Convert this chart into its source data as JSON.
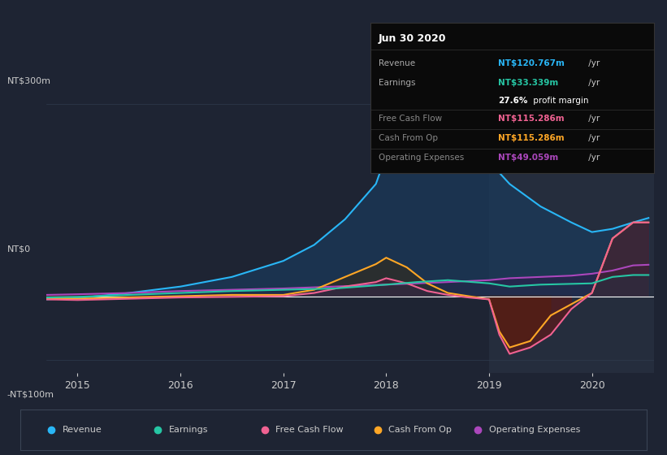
{
  "bg_color": "#1e2433",
  "plot_bg_color": "#1e2433",
  "highlight_bg": "#252d3d",
  "grid_color": "#2e3a4e",
  "zero_line_color": "#ffffff",
  "ylabel_300": "NT$300m",
  "ylabel_0": "NT$0",
  "ylabel_neg100": "-NT$100m",
  "x_ticks": [
    2015,
    2016,
    2017,
    2018,
    2019,
    2020
  ],
  "x_min": 2014.7,
  "x_max": 2020.6,
  "y_min": -120,
  "y_max": 320,
  "highlight_start": 2019.0,
  "highlight_end": 2020.6,
  "series": {
    "Revenue": {
      "color": "#29b6f6",
      "fill_color": "#1a3a5c",
      "x": [
        2014.7,
        2015.0,
        2015.5,
        2016.0,
        2016.5,
        2017.0,
        2017.3,
        2017.6,
        2017.9,
        2018.0,
        2018.1,
        2018.2,
        2018.4,
        2018.6,
        2018.8,
        2019.0,
        2019.2,
        2019.5,
        2019.8,
        2020.0,
        2020.2,
        2020.4,
        2020.55
      ],
      "y": [
        -5,
        -3,
        5,
        15,
        30,
        55,
        80,
        120,
        175,
        220,
        255,
        280,
        300,
        285,
        250,
        210,
        175,
        140,
        115,
        100,
        105,
        115,
        122
      ]
    },
    "Earnings": {
      "color": "#26c6a4",
      "fill_color": "#1a3a4a",
      "x": [
        2014.7,
        2015.0,
        2015.5,
        2016.0,
        2016.5,
        2017.0,
        2017.5,
        2018.0,
        2018.3,
        2018.6,
        2019.0,
        2019.2,
        2019.5,
        2020.0,
        2020.2,
        2020.4,
        2020.55
      ],
      "y": [
        -2,
        -1,
        2,
        5,
        8,
        10,
        12,
        18,
        22,
        25,
        20,
        15,
        18,
        20,
        30,
        33,
        33
      ]
    },
    "Free Cash Flow": {
      "color": "#f06292",
      "fill_color": "#4a2040",
      "x": [
        2014.7,
        2015.0,
        2015.5,
        2016.0,
        2016.5,
        2017.0,
        2017.3,
        2017.6,
        2017.9,
        2018.0,
        2018.2,
        2018.4,
        2018.6,
        2018.8,
        2019.0,
        2019.1,
        2019.2,
        2019.4,
        2019.6,
        2019.8,
        2020.0,
        2020.2,
        2020.4,
        2020.55
      ],
      "y": [
        -5,
        -6,
        -4,
        -2,
        -1,
        0,
        5,
        15,
        22,
        28,
        20,
        8,
        2,
        -2,
        -5,
        -60,
        -90,
        -80,
        -60,
        -20,
        5,
        90,
        115,
        115
      ]
    },
    "Cash From Op": {
      "color": "#ffa726",
      "fill_color": "#3a2a10",
      "x": [
        2014.7,
        2015.0,
        2015.5,
        2016.0,
        2016.5,
        2017.0,
        2017.3,
        2017.6,
        2017.9,
        2018.0,
        2018.2,
        2018.4,
        2018.6,
        2018.8,
        2019.0,
        2019.1,
        2019.2,
        2019.4,
        2019.6,
        2020.0,
        2020.2,
        2020.4,
        2020.55
      ],
      "y": [
        -3,
        -4,
        -2,
        0,
        2,
        2,
        10,
        30,
        50,
        60,
        45,
        20,
        5,
        0,
        -5,
        -55,
        -80,
        -70,
        -30,
        5,
        90,
        115,
        115
      ]
    },
    "Operating Expenses": {
      "color": "#ab47bc",
      "fill_color": "#2d1a4a",
      "x": [
        2014.7,
        2015.0,
        2015.5,
        2016.0,
        2016.5,
        2017.0,
        2017.5,
        2018.0,
        2018.3,
        2018.6,
        2019.0,
        2019.2,
        2019.5,
        2019.8,
        2020.0,
        2020.2,
        2020.4,
        2020.55
      ],
      "y": [
        2,
        3,
        5,
        8,
        10,
        12,
        15,
        18,
        20,
        22,
        25,
        28,
        30,
        32,
        35,
        40,
        48,
        49
      ]
    }
  },
  "tooltip": {
    "title": "Jun 30 2020",
    "bg_color": "#0a0a0a",
    "border_color": "#333333"
  },
  "tooltip_rows": [
    {
      "label": "Revenue",
      "value": "NT$120.767m",
      "suffix": " /yr",
      "value_color": "#29b6f6",
      "label_color": "#aaaaaa",
      "bold_prefix": false
    },
    {
      "label": "Earnings",
      "value": "NT$33.339m",
      "suffix": " /yr",
      "value_color": "#26c6a4",
      "label_color": "#aaaaaa",
      "bold_prefix": false
    },
    {
      "label": "",
      "value": "27.6%",
      "suffix": " profit margin",
      "value_color": "#ffffff",
      "label_color": "#aaaaaa",
      "bold_prefix": true
    },
    {
      "label": "Free Cash Flow",
      "value": "NT$115.286m",
      "suffix": " /yr",
      "value_color": "#f06292",
      "label_color": "#888888",
      "bold_prefix": false
    },
    {
      "label": "Cash From Op",
      "value": "NT$115.286m",
      "suffix": " /yr",
      "value_color": "#ffa726",
      "label_color": "#888888",
      "bold_prefix": false
    },
    {
      "label": "Operating Expenses",
      "value": "NT$49.059m",
      "suffix": " /yr",
      "value_color": "#ab47bc",
      "label_color": "#888888",
      "bold_prefix": false
    }
  ],
  "legend": [
    {
      "label": "Revenue",
      "color": "#29b6f6"
    },
    {
      "label": "Earnings",
      "color": "#26c6a4"
    },
    {
      "label": "Free Cash Flow",
      "color": "#f06292"
    },
    {
      "label": "Cash From Op",
      "color": "#ffa726"
    },
    {
      "label": "Operating Expenses",
      "color": "#ab47bc"
    }
  ]
}
